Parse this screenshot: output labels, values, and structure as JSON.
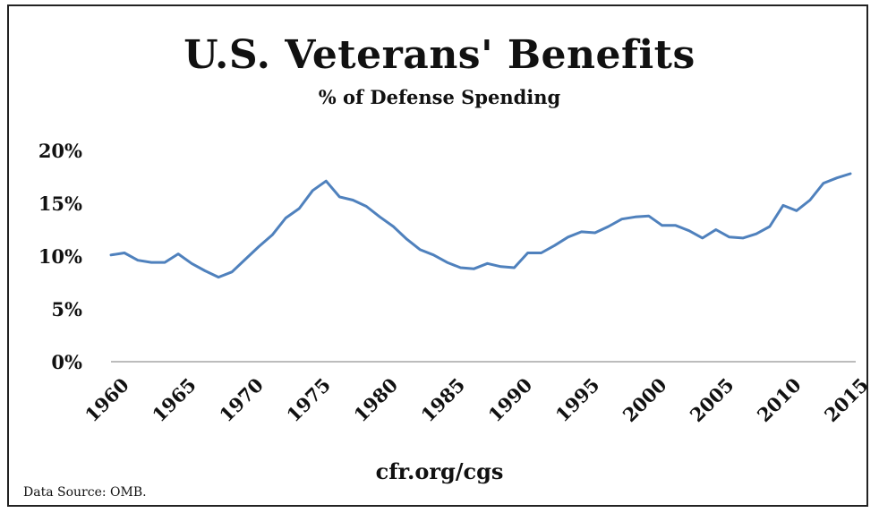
{
  "chart_data": {
    "type": "line",
    "title": "U.S. Veterans' Benefits",
    "subtitle": "% of Defense Spending",
    "xlabel": "",
    "ylabel": "",
    "ylim": [
      0,
      20
    ],
    "xlim": [
      1960,
      2015
    ],
    "y_ticks": [
      "0%",
      "5%",
      "10%",
      "15%",
      "20%"
    ],
    "y_tick_values": [
      0,
      5,
      10,
      15,
      20
    ],
    "x_ticks": [
      "1960",
      "1965",
      "1970",
      "1975",
      "1980",
      "1985",
      "1990",
      "1995",
      "2000",
      "2005",
      "2010",
      "2015"
    ],
    "x_tick_values": [
      1960,
      1965,
      1970,
      1975,
      1980,
      1985,
      1990,
      1995,
      2000,
      2005,
      2010,
      2015
    ],
    "grid": false,
    "legend": "none",
    "series": [
      {
        "color": "#4F81BD",
        "x": [
          1960,
          1961,
          1962,
          1963,
          1964,
          1965,
          1966,
          1967,
          1968,
          1969,
          1970,
          1971,
          1972,
          1973,
          1974,
          1975,
          1976,
          1977,
          1978,
          1979,
          1980,
          1981,
          1982,
          1983,
          1984,
          1985,
          1986,
          1987,
          1988,
          1989,
          1990,
          1991,
          1992,
          1993,
          1994,
          1995,
          1996,
          1997,
          1998,
          1999,
          2000,
          2001,
          2002,
          2003,
          2004,
          2005,
          2006,
          2007,
          2008,
          2009,
          2010,
          2011,
          2012,
          2013,
          2014,
          2015
        ],
        "values": [
          10.1,
          10.3,
          9.6,
          9.4,
          9.4,
          10.2,
          9.3,
          8.6,
          8.0,
          8.5,
          9.7,
          10.9,
          12.0,
          13.6,
          14.5,
          16.2,
          17.1,
          15.6,
          15.3,
          14.7,
          13.7,
          12.8,
          11.6,
          10.6,
          10.1,
          9.4,
          8.9,
          8.8,
          9.3,
          9.0,
          8.9,
          10.3,
          10.3,
          11.0,
          11.8,
          12.3,
          12.2,
          12.8,
          13.5,
          13.7,
          13.8,
          12.9,
          12.9,
          12.4,
          11.7,
          12.5,
          11.8,
          11.7,
          12.1,
          12.8,
          14.8,
          14.3,
          15.3,
          16.9,
          17.4,
          17.8
        ]
      }
    ],
    "axis_line_color": "#A6A6A6"
  },
  "footer_text": "cfr.org/cgs",
  "source_text": "Data Source: OMB."
}
